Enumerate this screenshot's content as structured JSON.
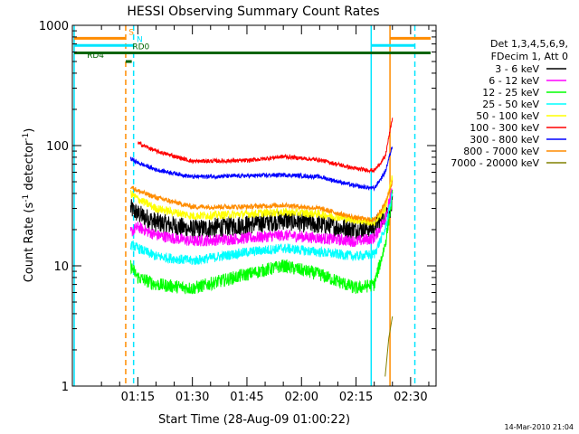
{
  "chart_data": {
    "type": "line",
    "title": "HESSI Observing Summary Count Rates",
    "xlabel": "Start Time (28-Aug-09 01:00:22)",
    "ylabel_main": "Count Rate (s",
    "ylabel_sup1": "-1",
    "ylabel_mid": " detector",
    "ylabel_sup2": "-1",
    "ylabel_end": ")",
    "yscale": "log",
    "xlim": [
      "00:57",
      "02:37"
    ],
    "ylim": [
      1,
      1000
    ],
    "xticks": [
      "01:15",
      "01:30",
      "01:45",
      "02:00",
      "02:15",
      "02:30"
    ],
    "yticks": [
      {
        "value": 1,
        "label": "1"
      },
      {
        "value": 10,
        "label": "10"
      },
      {
        "value": 100,
        "label": "100"
      },
      {
        "value": 1000,
        "label": "1000"
      }
    ],
    "legend_header": [
      "Det 1,3,4,5,6,9,",
      "FDecim 1, Att 0"
    ],
    "series": [
      {
        "name": "3 - 6 keV",
        "color": "#000000",
        "noise": 0.12,
        "points": [
          [
            "01:13",
            30
          ],
          [
            "01:15",
            27
          ],
          [
            "01:20",
            23
          ],
          [
            "01:30",
            20
          ],
          [
            "01:45",
            22
          ],
          [
            "01:55",
            24
          ],
          [
            "02:05",
            22
          ],
          [
            "02:15",
            20
          ],
          [
            "02:20",
            21
          ],
          [
            "02:23",
            27
          ],
          [
            "02:25",
            32
          ]
        ]
      },
      {
        "name": "6 - 12 keV",
        "color": "#ff00ff",
        "noise": 0.07,
        "points": [
          [
            "01:13",
            19
          ],
          [
            "01:15",
            21
          ],
          [
            "01:20",
            18
          ],
          [
            "01:30",
            16
          ],
          [
            "01:45",
            17
          ],
          [
            "01:55",
            18
          ],
          [
            "02:05",
            17
          ],
          [
            "02:15",
            16
          ],
          [
            "02:20",
            17
          ],
          [
            "02:23",
            25
          ],
          [
            "02:25",
            42
          ]
        ]
      },
      {
        "name": "12 - 25 keV",
        "color": "#00ff00",
        "noise": 0.08,
        "points": [
          [
            "01:13",
            10
          ],
          [
            "01:15",
            8
          ],
          [
            "01:20",
            7
          ],
          [
            "01:30",
            6.5
          ],
          [
            "01:45",
            8.5
          ],
          [
            "01:55",
            10
          ],
          [
            "02:05",
            8.5
          ],
          [
            "02:15",
            6.5
          ],
          [
            "02:20",
            7
          ],
          [
            "02:23",
            15
          ],
          [
            "02:25",
            38
          ]
        ]
      },
      {
        "name": "25 - 50 keV",
        "color": "#00ffff",
        "noise": 0.06,
        "points": [
          [
            "01:13",
            15
          ],
          [
            "01:15",
            14
          ],
          [
            "01:20",
            12
          ],
          [
            "01:30",
            11
          ],
          [
            "01:45",
            13
          ],
          [
            "01:55",
            14
          ],
          [
            "02:05",
            13
          ],
          [
            "02:15",
            12
          ],
          [
            "02:20",
            12.5
          ],
          [
            "02:23",
            20
          ],
          [
            "02:25",
            40
          ]
        ]
      },
      {
        "name": "50 - 100 keV",
        "color": "#ffff00",
        "noise": 0.05,
        "points": [
          [
            "01:13",
            40
          ],
          [
            "01:15",
            36
          ],
          [
            "01:20",
            30
          ],
          [
            "01:30",
            26
          ],
          [
            "01:45",
            27
          ],
          [
            "01:55",
            28
          ],
          [
            "02:05",
            27
          ],
          [
            "02:15",
            24
          ],
          [
            "02:20",
            23
          ],
          [
            "02:23",
            30
          ],
          [
            "02:25",
            55
          ]
        ]
      },
      {
        "name": "100 - 300 keV",
        "color": "#ff0000",
        "noise": 0.025,
        "points": [
          [
            "01:15",
            105
          ],
          [
            "01:20",
            90
          ],
          [
            "01:30",
            74
          ],
          [
            "01:45",
            75
          ],
          [
            "01:55",
            81
          ],
          [
            "02:05",
            76
          ],
          [
            "02:15",
            64
          ],
          [
            "02:20",
            62
          ],
          [
            "02:23",
            80
          ],
          [
            "02:25",
            170
          ]
        ]
      },
      {
        "name": "300 - 800 keV",
        "color": "#0000ff",
        "noise": 0.025,
        "points": [
          [
            "01:13",
            78
          ],
          [
            "01:15",
            72
          ],
          [
            "01:20",
            63
          ],
          [
            "01:30",
            55
          ],
          [
            "01:45",
            56
          ],
          [
            "01:55",
            57
          ],
          [
            "02:05",
            55
          ],
          [
            "02:15",
            46
          ],
          [
            "02:20",
            44
          ],
          [
            "02:23",
            60
          ],
          [
            "02:25",
            100
          ]
        ]
      },
      {
        "name": "800 - 7000 keV",
        "color": "#ff8c00",
        "noise": 0.03,
        "points": [
          [
            "01:13",
            46
          ],
          [
            "01:15",
            42
          ],
          [
            "01:20",
            37
          ],
          [
            "01:30",
            31
          ],
          [
            "01:45",
            31
          ],
          [
            "01:55",
            32
          ],
          [
            "02:05",
            30
          ],
          [
            "02:15",
            25
          ],
          [
            "02:20",
            24
          ],
          [
            "02:23",
            33
          ],
          [
            "02:25",
            50
          ]
        ]
      },
      {
        "name": "7000 - 20000 keV",
        "color": "#808000",
        "noise": 0.0,
        "points": [
          [
            "02:23",
            1.2
          ],
          [
            "02:24",
            2.5
          ],
          [
            "02:25",
            3.8
          ]
        ]
      }
    ],
    "vlines": [
      {
        "time": "00:57:30",
        "color": "#00e5ff",
        "style": "solid"
      },
      {
        "time": "01:11:40",
        "color": "#ff8c00",
        "style": "dashed"
      },
      {
        "time": "01:13:50",
        "color": "#00e5ff",
        "style": "dashed"
      },
      {
        "time": "02:19:10",
        "color": "#00e5ff",
        "style": "solid"
      },
      {
        "time": "02:24:20",
        "color": "#ff8c00",
        "style": "solid"
      },
      {
        "time": "02:31:10",
        "color": "#00e5ff",
        "style": "dashed"
      }
    ],
    "flags": [
      {
        "label": "S",
        "color": "#ff8c00",
        "value": 780,
        "spans": [
          [
            "00:57:30",
            "01:11:40"
          ],
          [
            "02:24:20",
            "02:35:30"
          ]
        ],
        "label_at": "01:12:30"
      },
      {
        "label": "N",
        "color": "#00e5ff",
        "value": 680,
        "spans": [
          [
            "00:57:30",
            "01:13:50"
          ],
          [
            "02:19:10",
            "02:31:10"
          ]
        ],
        "label_at": "01:14:40"
      },
      {
        "label": "RD0",
        "color": "#006400",
        "value": 590,
        "spans": [
          [
            "00:57:30",
            "02:35:30"
          ]
        ],
        "label_at": "01:13:30"
      },
      {
        "label": "RD4",
        "color": "#006400",
        "value": 500,
        "spans": [
          [
            "01:11:40",
            "01:13:20"
          ]
        ],
        "label_at": "01:01:00"
      }
    ]
  },
  "timestamp": "14-Mar-2010 21:04"
}
